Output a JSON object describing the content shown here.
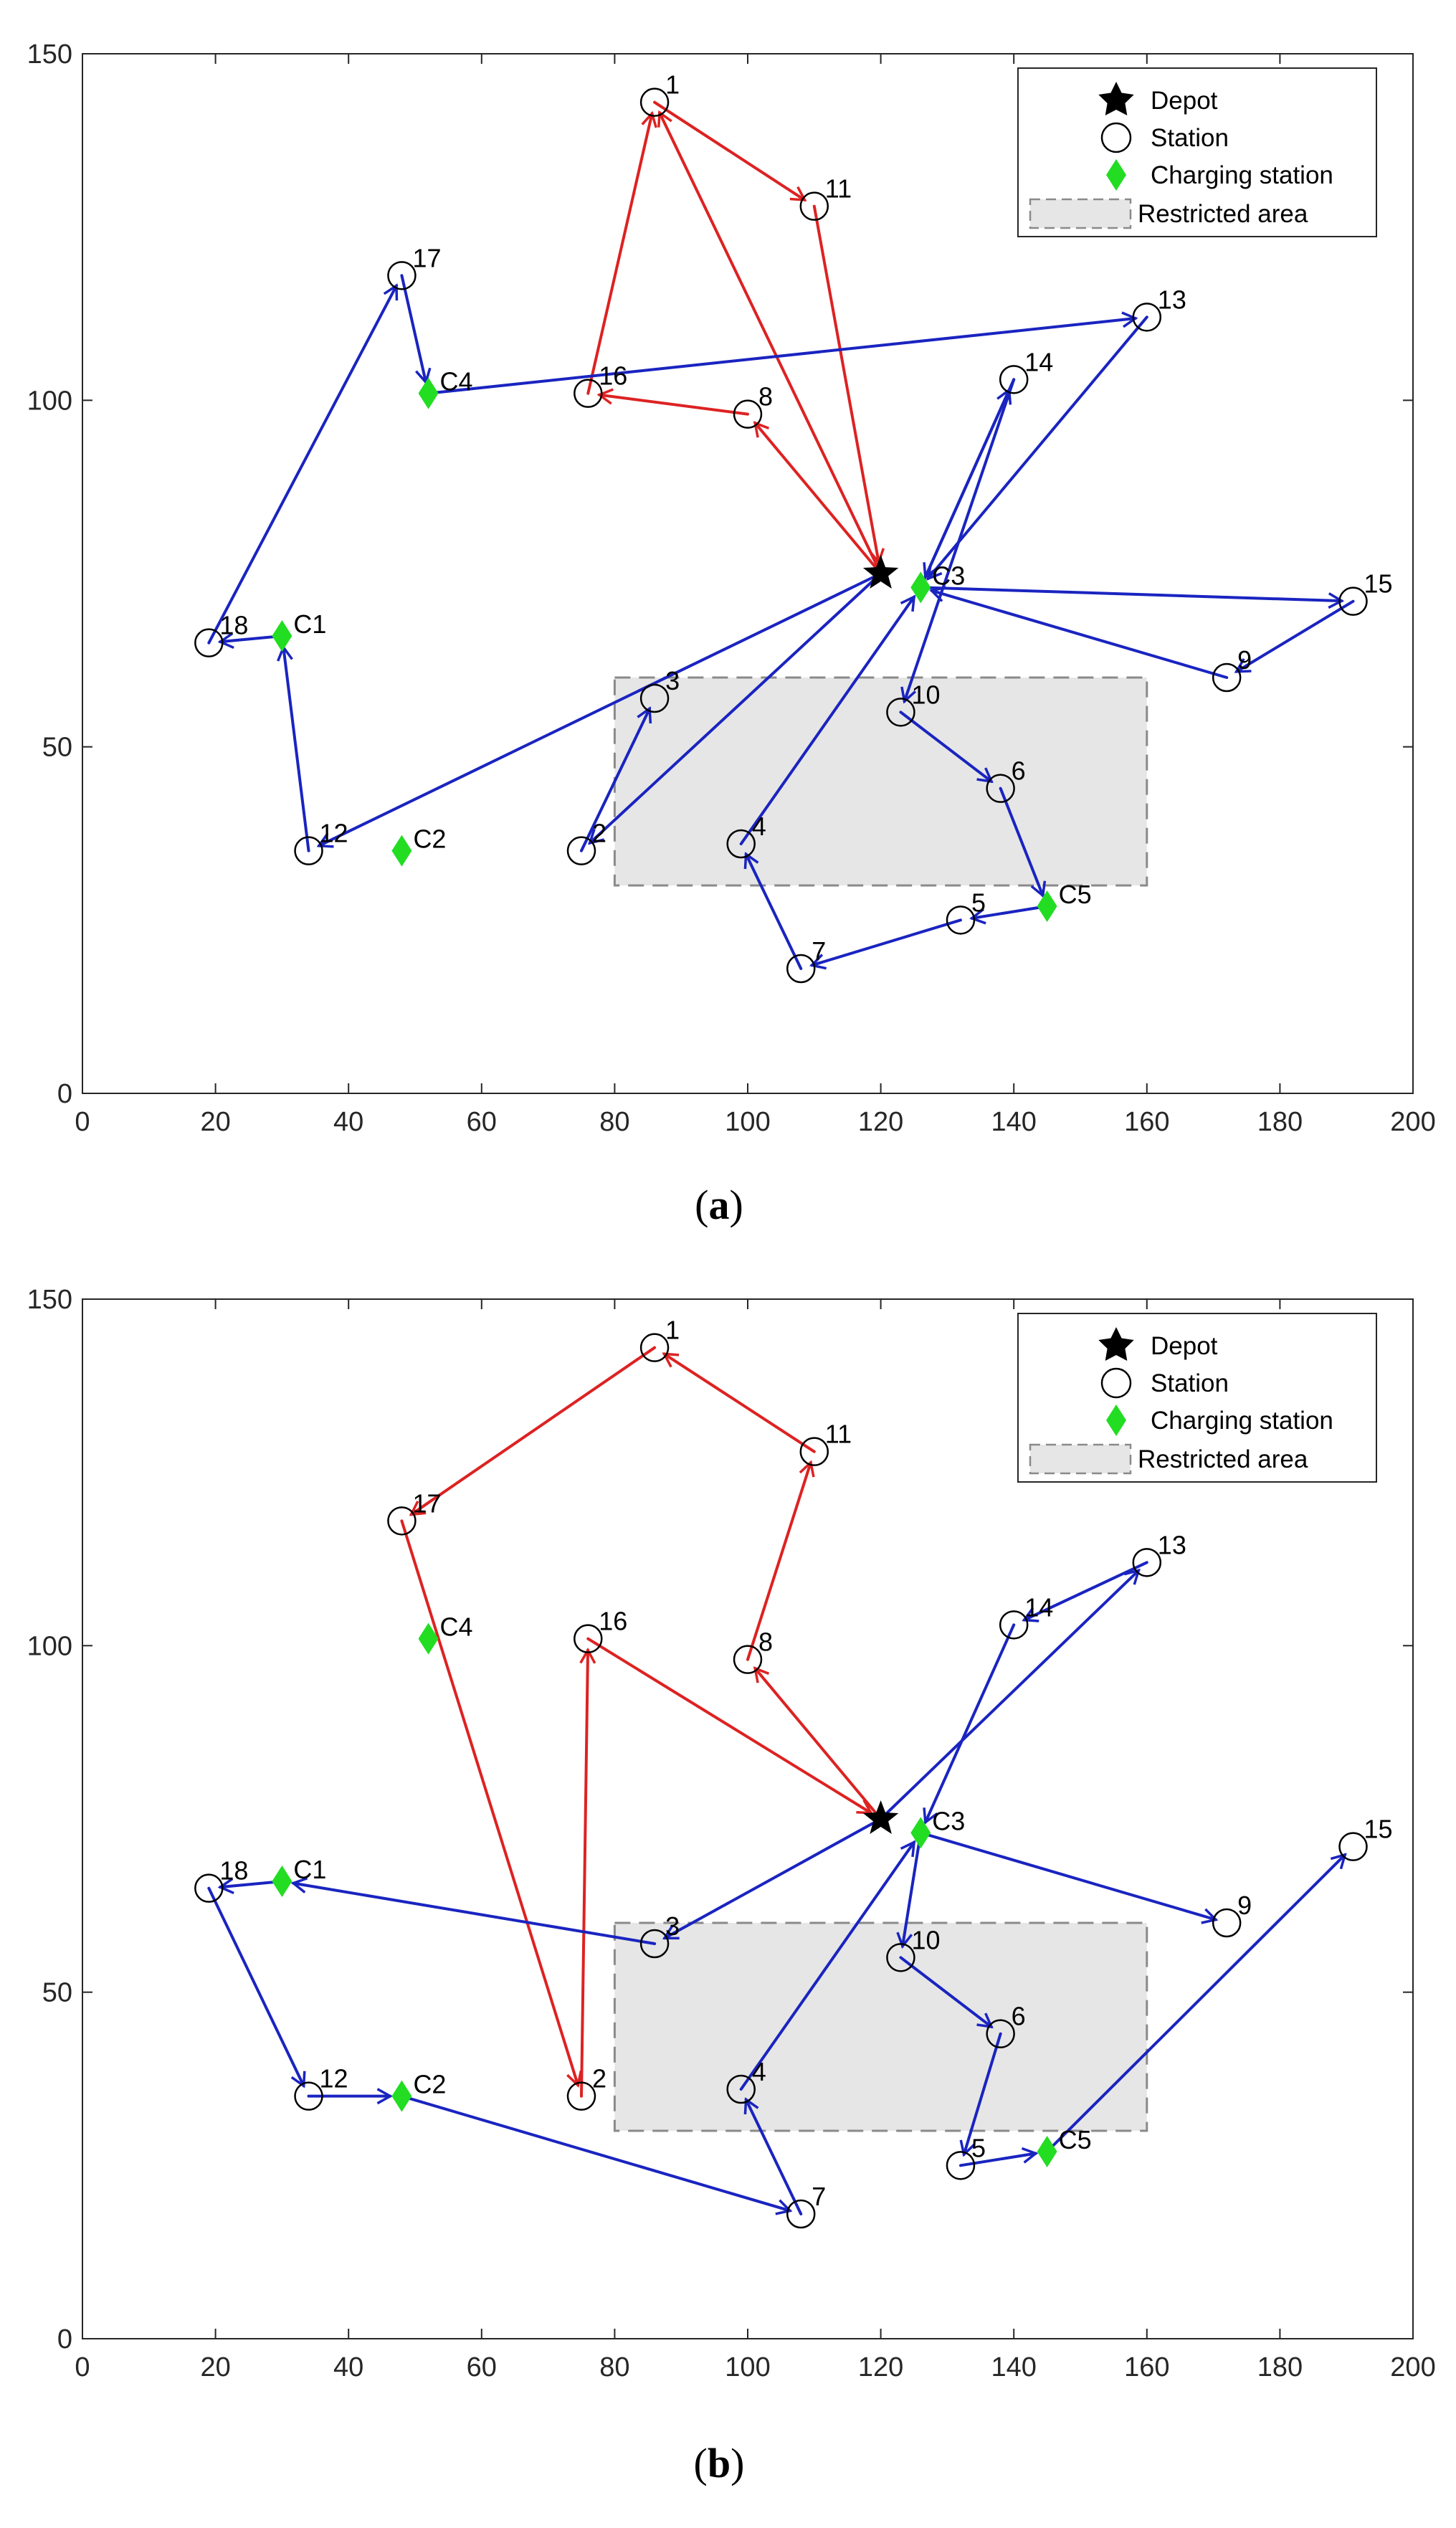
{
  "colors": {
    "depot": "#000000",
    "station": "#000000",
    "charging": "#22dd22",
    "route_red": "#dd2222",
    "route_blue": "#1a24c0",
    "restricted_fill": "#e6e6e6",
    "restricted_edge": "#8a8a8a"
  },
  "chart_data": [
    {
      "type": "scatter",
      "panel": "a",
      "caption": {
        "open": "(",
        "letter": "a",
        "close": ")"
      },
      "xlim": [
        0,
        200
      ],
      "ylim": [
        0,
        150
      ],
      "xticks": [
        0,
        20,
        40,
        60,
        80,
        100,
        120,
        140,
        160,
        180,
        200
      ],
      "yticks": [
        0,
        50,
        100,
        150
      ],
      "legend": {
        "placement": "top-right",
        "entries": [
          {
            "name": "Depot",
            "marker": "star"
          },
          {
            "name": "Station",
            "marker": "circle"
          },
          {
            "name": "Charging station",
            "marker": "diamond"
          },
          {
            "name": "Restricted area",
            "marker": "rect"
          }
        ]
      },
      "restricted_area": {
        "x": [
          80,
          160
        ],
        "y": [
          30,
          60
        ]
      },
      "depot": {
        "x": 120,
        "y": 75
      },
      "stations": [
        {
          "id": "1",
          "x": 86,
          "y": 143
        },
        {
          "id": "2",
          "x": 75,
          "y": 35
        },
        {
          "id": "3",
          "x": 86,
          "y": 57
        },
        {
          "id": "4",
          "x": 99,
          "y": 36
        },
        {
          "id": "5",
          "x": 132,
          "y": 25
        },
        {
          "id": "6",
          "x": 138,
          "y": 44
        },
        {
          "id": "7",
          "x": 108,
          "y": 18
        },
        {
          "id": "8",
          "x": 100,
          "y": 98
        },
        {
          "id": "9",
          "x": 172,
          "y": 60
        },
        {
          "id": "10",
          "x": 123,
          "y": 55
        },
        {
          "id": "11",
          "x": 110,
          "y": 128
        },
        {
          "id": "12",
          "x": 34,
          "y": 35
        },
        {
          "id": "13",
          "x": 160,
          "y": 112
        },
        {
          "id": "14",
          "x": 140,
          "y": 103
        },
        {
          "id": "15",
          "x": 191,
          "y": 71
        },
        {
          "id": "16",
          "x": 76,
          "y": 101
        },
        {
          "id": "17",
          "x": 48,
          "y": 118
        },
        {
          "id": "18",
          "x": 19,
          "y": 65
        }
      ],
      "charging_stations": [
        {
          "id": "C1",
          "x": 30,
          "y": 66
        },
        {
          "id": "C2",
          "x": 48,
          "y": 35
        },
        {
          "id": "C3",
          "x": 126,
          "y": 73
        },
        {
          "id": "C4",
          "x": 52,
          "y": 101
        },
        {
          "id": "C5",
          "x": 145,
          "y": 27
        }
      ],
      "routes": [
        {
          "name": "red",
          "color": "red",
          "path": [
            [
              120,
              75
            ],
            [
              86,
              143
            ],
            [
              110,
              128
            ],
            [
              120,
              75
            ],
            [
              100,
              98
            ],
            [
              76,
              101
            ],
            [
              86,
              143
            ]
          ]
        },
        {
          "name": "blue-1",
          "color": "blue",
          "path": [
            [
              120,
              75
            ],
            [
              34,
              35
            ],
            [
              30,
              66
            ],
            [
              19,
              65
            ],
            [
              48,
              118
            ],
            [
              52,
              101
            ],
            [
              160,
              112
            ],
            [
              126,
              73
            ]
          ]
        },
        {
          "name": "blue-2",
          "color": "blue",
          "path": [
            [
              126,
              73
            ],
            [
              191,
              71
            ],
            [
              172,
              60
            ],
            [
              126,
              73
            ],
            [
              140,
              103
            ],
            [
              123,
              55
            ],
            [
              138,
              44
            ],
            [
              145,
              27
            ],
            [
              132,
              25
            ],
            [
              108,
              18
            ],
            [
              99,
              36
            ],
            [
              126,
              73
            ]
          ]
        },
        {
          "name": "blue-3",
          "color": "blue",
          "path": [
            [
              120,
              75
            ],
            [
              75,
              35
            ],
            [
              86,
              57
            ]
          ]
        },
        {
          "name": "blue-4",
          "color": "blue",
          "path": [
            [
              140,
              103
            ],
            [
              126,
              73
            ]
          ]
        }
      ]
    },
    {
      "type": "scatter",
      "panel": "b",
      "caption": {
        "open": "(",
        "letter": "b",
        "close": ")"
      },
      "xlim": [
        0,
        200
      ],
      "ylim": [
        0,
        150
      ],
      "xticks": [
        0,
        20,
        40,
        60,
        80,
        100,
        120,
        140,
        160,
        180,
        200
      ],
      "yticks": [
        0,
        50,
        100,
        150
      ],
      "legend": {
        "placement": "top-right",
        "entries": [
          {
            "name": "Depot",
            "marker": "star"
          },
          {
            "name": "Station",
            "marker": "circle"
          },
          {
            "name": "Charging station",
            "marker": "diamond"
          },
          {
            "name": "Restricted area",
            "marker": "rect"
          }
        ]
      },
      "restricted_area": {
        "x": [
          80,
          160
        ],
        "y": [
          30,
          60
        ]
      },
      "depot": {
        "x": 120,
        "y": 75
      },
      "stations": [
        {
          "id": "1",
          "x": 86,
          "y": 143
        },
        {
          "id": "2",
          "x": 75,
          "y": 35
        },
        {
          "id": "3",
          "x": 86,
          "y": 57
        },
        {
          "id": "4",
          "x": 99,
          "y": 36
        },
        {
          "id": "5",
          "x": 132,
          "y": 25
        },
        {
          "id": "6",
          "x": 138,
          "y": 44
        },
        {
          "id": "7",
          "x": 108,
          "y": 18
        },
        {
          "id": "8",
          "x": 100,
          "y": 98
        },
        {
          "id": "9",
          "x": 172,
          "y": 60
        },
        {
          "id": "10",
          "x": 123,
          "y": 55
        },
        {
          "id": "11",
          "x": 110,
          "y": 128
        },
        {
          "id": "12",
          "x": 34,
          "y": 35
        },
        {
          "id": "13",
          "x": 160,
          "y": 112
        },
        {
          "id": "14",
          "x": 140,
          "y": 103
        },
        {
          "id": "15",
          "x": 191,
          "y": 71
        },
        {
          "id": "16",
          "x": 76,
          "y": 101
        },
        {
          "id": "17",
          "x": 48,
          "y": 118
        },
        {
          "id": "18",
          "x": 19,
          "y": 65
        }
      ],
      "charging_stations": [
        {
          "id": "C1",
          "x": 30,
          "y": 66
        },
        {
          "id": "C2",
          "x": 48,
          "y": 35
        },
        {
          "id": "C3",
          "x": 126,
          "y": 73
        },
        {
          "id": "C4",
          "x": 52,
          "y": 101
        },
        {
          "id": "C5",
          "x": 145,
          "y": 27
        }
      ],
      "routes": [
        {
          "name": "red-1",
          "color": "red",
          "path": [
            [
              120,
              75
            ],
            [
              100,
              98
            ],
            [
              110,
              128
            ],
            [
              86,
              143
            ],
            [
              48,
              118
            ],
            [
              75,
              35
            ],
            [
              76,
              101
            ],
            [
              120,
              75
            ]
          ]
        },
        {
          "name": "blue-1",
          "color": "blue",
          "path": [
            [
              120,
              75
            ],
            [
              86,
              57
            ],
            [
              30,
              66
            ],
            [
              19,
              65
            ],
            [
              34,
              35
            ],
            [
              48,
              35
            ],
            [
              108,
              18
            ],
            [
              99,
              36
            ],
            [
              126,
              73
            ],
            [
              172,
              60
            ]
          ]
        },
        {
          "name": "blue-2",
          "color": "blue",
          "path": [
            [
              126,
              73
            ],
            [
              123,
              55
            ],
            [
              138,
              44
            ],
            [
              132,
              25
            ],
            [
              145,
              27
            ],
            [
              191,
              71
            ]
          ]
        },
        {
          "name": "blue-3",
          "color": "blue",
          "path": [
            [
              120,
              75
            ],
            [
              160,
              112
            ],
            [
              140,
              103
            ],
            [
              126,
              73
            ]
          ]
        }
      ]
    }
  ]
}
